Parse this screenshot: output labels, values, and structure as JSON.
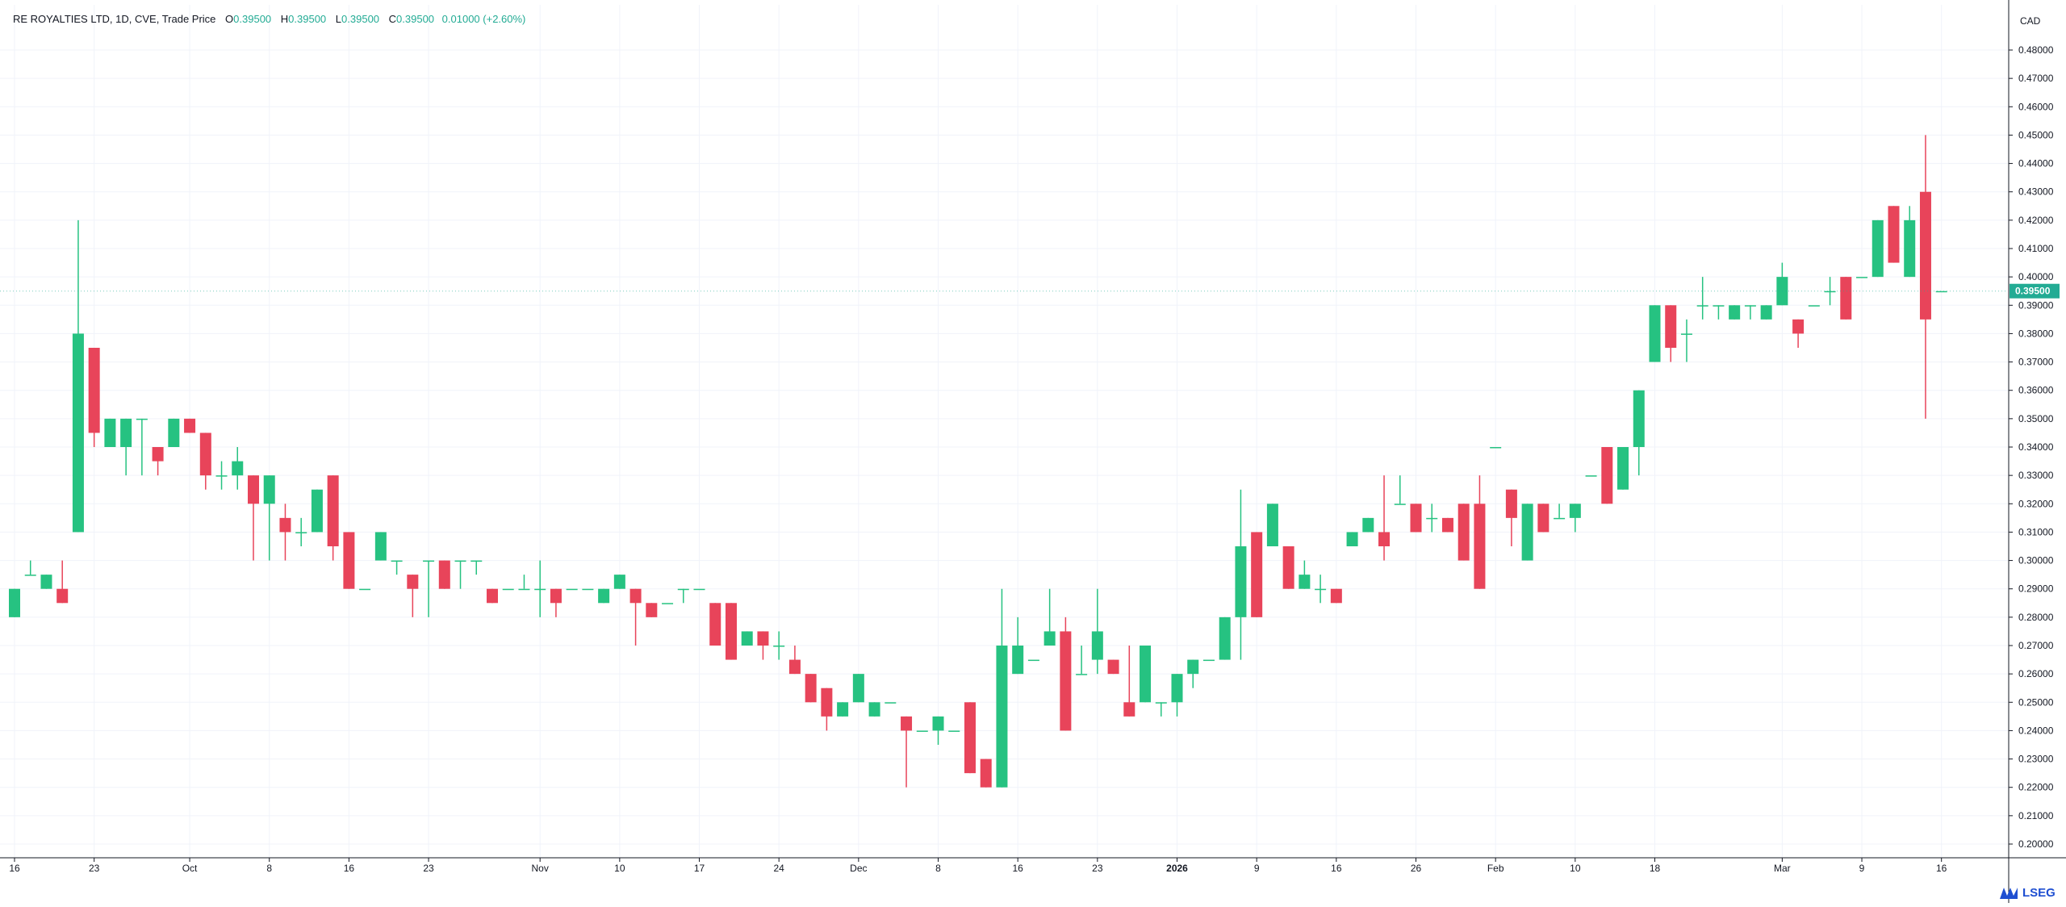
{
  "header": {
    "symbol_line": "RE ROYALTIES LTD, 1D, CVE, Trade Price",
    "o_label": "O",
    "o_value": "0.39500",
    "h_label": "H",
    "h_value": "0.39500",
    "l_label": "L",
    "l_value": "0.39500",
    "c_label": "C",
    "c_value": "0.39500",
    "change": "0.01000 (+2.60%)"
  },
  "currency": "CAD",
  "branding": {
    "logo_text": "LSEG"
  },
  "colors": {
    "up": "#26c281",
    "down": "#e8445a",
    "grid": "#f0f3fa",
    "axis": "#131722",
    "last_price_bg": "#22ab94"
  },
  "chart_data": {
    "type": "candlestick",
    "title": "RE ROYALTIES LTD, 1D, CVE, Trade Price",
    "ylabel": "CAD",
    "ylim": [
      0.195,
      0.49
    ],
    "y_ticks": [
      "0.20000",
      "0.21000",
      "0.22000",
      "0.23000",
      "0.24000",
      "0.25000",
      "0.26000",
      "0.27000",
      "0.28000",
      "0.29000",
      "0.30000",
      "0.31000",
      "0.32000",
      "0.33000",
      "0.34000",
      "0.35000",
      "0.36000",
      "0.37000",
      "0.38000",
      "0.39000",
      "0.40000",
      "0.41000",
      "0.42000",
      "0.43000",
      "0.44000",
      "0.45000",
      "0.46000",
      "0.47000",
      "0.48000"
    ],
    "x_ticks": [
      {
        "i": 0,
        "label": "16",
        "bold": false
      },
      {
        "i": 5,
        "label": "23",
        "bold": false
      },
      {
        "i": 11,
        "label": "Oct",
        "bold": false
      },
      {
        "i": 16,
        "label": "8",
        "bold": false
      },
      {
        "i": 21,
        "label": "16",
        "bold": false
      },
      {
        "i": 26,
        "label": "23",
        "bold": false
      },
      {
        "i": 33,
        "label": "Nov",
        "bold": false
      },
      {
        "i": 38,
        "label": "10",
        "bold": false
      },
      {
        "i": 43,
        "label": "17",
        "bold": false
      },
      {
        "i": 48,
        "label": "24",
        "bold": false
      },
      {
        "i": 53,
        "label": "Dec",
        "bold": false
      },
      {
        "i": 58,
        "label": "8",
        "bold": false
      },
      {
        "i": 63,
        "label": "16",
        "bold": false
      },
      {
        "i": 68,
        "label": "23",
        "bold": false
      },
      {
        "i": 73,
        "label": "2026",
        "bold": true
      },
      {
        "i": 78,
        "label": "9",
        "bold": false
      },
      {
        "i": 83,
        "label": "16",
        "bold": false
      },
      {
        "i": 88,
        "label": "26",
        "bold": false
      },
      {
        "i": 93,
        "label": "Feb",
        "bold": false
      },
      {
        "i": 98,
        "label": "10",
        "bold": false
      },
      {
        "i": 103,
        "label": "18",
        "bold": false
      },
      {
        "i": 111,
        "label": "Mar",
        "bold": false
      },
      {
        "i": 116,
        "label": "9",
        "bold": false
      },
      {
        "i": 121,
        "label": "16",
        "bold": false
      }
    ],
    "last_price": "0.39500",
    "candles": [
      {
        "o": 0.28,
        "h": 0.29,
        "l": 0.28,
        "c": 0.29
      },
      {
        "o": 0.295,
        "h": 0.3,
        "l": 0.295,
        "c": 0.295
      },
      {
        "o": 0.29,
        "h": 0.295,
        "l": 0.29,
        "c": 0.295
      },
      {
        "o": 0.29,
        "h": 0.3,
        "l": 0.285,
        "c": 0.285
      },
      {
        "o": 0.31,
        "h": 0.42,
        "l": 0.31,
        "c": 0.38
      },
      {
        "o": 0.375,
        "h": 0.375,
        "l": 0.34,
        "c": 0.345
      },
      {
        "o": 0.34,
        "h": 0.35,
        "l": 0.34,
        "c": 0.35
      },
      {
        "o": 0.34,
        "h": 0.35,
        "l": 0.33,
        "c": 0.35
      },
      {
        "o": 0.35,
        "h": 0.35,
        "l": 0.33,
        "c": 0.35
      },
      {
        "o": 0.34,
        "h": 0.34,
        "l": 0.33,
        "c": 0.335
      },
      {
        "o": 0.34,
        "h": 0.35,
        "l": 0.34,
        "c": 0.35
      },
      {
        "o": 0.35,
        "h": 0.35,
        "l": 0.345,
        "c": 0.345
      },
      {
        "o": 0.345,
        "h": 0.345,
        "l": 0.325,
        "c": 0.33
      },
      {
        "o": 0.33,
        "h": 0.335,
        "l": 0.325,
        "c": 0.33
      },
      {
        "o": 0.33,
        "h": 0.34,
        "l": 0.325,
        "c": 0.335
      },
      {
        "o": 0.33,
        "h": 0.33,
        "l": 0.3,
        "c": 0.32
      },
      {
        "o": 0.32,
        "h": 0.33,
        "l": 0.3,
        "c": 0.33
      },
      {
        "o": 0.315,
        "h": 0.32,
        "l": 0.3,
        "c": 0.31
      },
      {
        "o": 0.31,
        "h": 0.315,
        "l": 0.305,
        "c": 0.31
      },
      {
        "o": 0.31,
        "h": 0.325,
        "l": 0.31,
        "c": 0.325
      },
      {
        "o": 0.33,
        "h": 0.33,
        "l": 0.3,
        "c": 0.305
      },
      {
        "o": 0.31,
        "h": 0.31,
        "l": 0.29,
        "c": 0.29
      },
      {
        "o": 0.29,
        "h": 0.29,
        "l": 0.29,
        "c": 0.29
      },
      {
        "o": 0.3,
        "h": 0.31,
        "l": 0.3,
        "c": 0.31
      },
      {
        "o": 0.3,
        "h": 0.3,
        "l": 0.295,
        "c": 0.3
      },
      {
        "o": 0.295,
        "h": 0.295,
        "l": 0.28,
        "c": 0.29
      },
      {
        "o": 0.3,
        "h": 0.3,
        "l": 0.28,
        "c": 0.3
      },
      {
        "o": 0.3,
        "h": 0.3,
        "l": 0.29,
        "c": 0.29
      },
      {
        "o": 0.3,
        "h": 0.3,
        "l": 0.29,
        "c": 0.3
      },
      {
        "o": 0.3,
        "h": 0.3,
        "l": 0.295,
        "c": 0.3
      },
      {
        "o": 0.29,
        "h": 0.29,
        "l": 0.285,
        "c": 0.285
      },
      {
        "o": 0.29,
        "h": 0.29,
        "l": 0.29,
        "c": 0.29
      },
      {
        "o": 0.29,
        "h": 0.295,
        "l": 0.29,
        "c": 0.29
      },
      {
        "o": 0.29,
        "h": 0.3,
        "l": 0.28,
        "c": 0.29
      },
      {
        "o": 0.29,
        "h": 0.29,
        "l": 0.28,
        "c": 0.285
      },
      {
        "o": 0.29,
        "h": 0.29,
        "l": 0.29,
        "c": 0.29
      },
      {
        "o": 0.29,
        "h": 0.29,
        "l": 0.29,
        "c": 0.29
      },
      {
        "o": 0.285,
        "h": 0.29,
        "l": 0.285,
        "c": 0.29
      },
      {
        "o": 0.29,
        "h": 0.295,
        "l": 0.29,
        "c": 0.295
      },
      {
        "o": 0.29,
        "h": 0.29,
        "l": 0.27,
        "c": 0.285
      },
      {
        "o": 0.285,
        "h": 0.285,
        "l": 0.28,
        "c": 0.28
      },
      {
        "o": 0.285,
        "h": 0.285,
        "l": 0.285,
        "c": 0.285
      },
      {
        "o": 0.29,
        "h": 0.29,
        "l": 0.285,
        "c": 0.29
      },
      {
        "o": 0.29,
        "h": 0.29,
        "l": 0.29,
        "c": 0.29
      },
      {
        "o": 0.285,
        "h": 0.285,
        "l": 0.27,
        "c": 0.27
      },
      {
        "o": 0.285,
        "h": 0.285,
        "l": 0.265,
        "c": 0.265
      },
      {
        "o": 0.27,
        "h": 0.275,
        "l": 0.27,
        "c": 0.275
      },
      {
        "o": 0.275,
        "h": 0.275,
        "l": 0.265,
        "c": 0.27
      },
      {
        "o": 0.27,
        "h": 0.275,
        "l": 0.265,
        "c": 0.27
      },
      {
        "o": 0.265,
        "h": 0.27,
        "l": 0.26,
        "c": 0.26
      },
      {
        "o": 0.26,
        "h": 0.26,
        "l": 0.25,
        "c": 0.25
      },
      {
        "o": 0.255,
        "h": 0.255,
        "l": 0.24,
        "c": 0.245
      },
      {
        "o": 0.245,
        "h": 0.25,
        "l": 0.245,
        "c": 0.25
      },
      {
        "o": 0.25,
        "h": 0.26,
        "l": 0.25,
        "c": 0.26
      },
      {
        "o": 0.245,
        "h": 0.25,
        "l": 0.245,
        "c": 0.25
      },
      {
        "o": 0.25,
        "h": 0.25,
        "l": 0.25,
        "c": 0.25
      },
      {
        "o": 0.245,
        "h": 0.245,
        "l": 0.22,
        "c": 0.24
      },
      {
        "o": 0.24,
        "h": 0.24,
        "l": 0.24,
        "c": 0.24
      },
      {
        "o": 0.24,
        "h": 0.245,
        "l": 0.235,
        "c": 0.245
      },
      {
        "o": 0.24,
        "h": 0.24,
        "l": 0.24,
        "c": 0.24
      },
      {
        "o": 0.25,
        "h": 0.25,
        "l": 0.225,
        "c": 0.225
      },
      {
        "o": 0.23,
        "h": 0.23,
        "l": 0.22,
        "c": 0.22
      },
      {
        "o": 0.22,
        "h": 0.29,
        "l": 0.22,
        "c": 0.27
      },
      {
        "o": 0.26,
        "h": 0.28,
        "l": 0.26,
        "c": 0.27
      },
      {
        "o": 0.265,
        "h": 0.265,
        "l": 0.265,
        "c": 0.265
      },
      {
        "o": 0.27,
        "h": 0.29,
        "l": 0.27,
        "c": 0.275
      },
      {
        "o": 0.275,
        "h": 0.28,
        "l": 0.24,
        "c": 0.24
      },
      {
        "o": 0.26,
        "h": 0.27,
        "l": 0.26,
        "c": 0.26
      },
      {
        "o": 0.265,
        "h": 0.29,
        "l": 0.26,
        "c": 0.275
      },
      {
        "o": 0.265,
        "h": 0.265,
        "l": 0.26,
        "c": 0.26
      },
      {
        "o": 0.25,
        "h": 0.27,
        "l": 0.245,
        "c": 0.245
      },
      {
        "o": 0.25,
        "h": 0.27,
        "l": 0.25,
        "c": 0.27
      },
      {
        "o": 0.25,
        "h": 0.25,
        "l": 0.245,
        "c": 0.25
      },
      {
        "o": 0.25,
        "h": 0.26,
        "l": 0.245,
        "c": 0.26
      },
      {
        "o": 0.26,
        "h": 0.265,
        "l": 0.255,
        "c": 0.265
      },
      {
        "o": 0.265,
        "h": 0.265,
        "l": 0.265,
        "c": 0.265
      },
      {
        "o": 0.265,
        "h": 0.28,
        "l": 0.265,
        "c": 0.28
      },
      {
        "o": 0.28,
        "h": 0.325,
        "l": 0.265,
        "c": 0.305
      },
      {
        "o": 0.31,
        "h": 0.31,
        "l": 0.28,
        "c": 0.28
      },
      {
        "o": 0.305,
        "h": 0.32,
        "l": 0.305,
        "c": 0.32
      },
      {
        "o": 0.305,
        "h": 0.305,
        "l": 0.29,
        "c": 0.29
      },
      {
        "o": 0.29,
        "h": 0.3,
        "l": 0.29,
        "c": 0.295
      },
      {
        "o": 0.29,
        "h": 0.295,
        "l": 0.285,
        "c": 0.29
      },
      {
        "o": 0.29,
        "h": 0.29,
        "l": 0.285,
        "c": 0.285
      },
      {
        "o": 0.305,
        "h": 0.31,
        "l": 0.305,
        "c": 0.31
      },
      {
        "o": 0.31,
        "h": 0.315,
        "l": 0.31,
        "c": 0.315
      },
      {
        "o": 0.31,
        "h": 0.33,
        "l": 0.3,
        "c": 0.305
      },
      {
        "o": 0.32,
        "h": 0.33,
        "l": 0.32,
        "c": 0.32
      },
      {
        "o": 0.32,
        "h": 0.32,
        "l": 0.31,
        "c": 0.31
      },
      {
        "o": 0.315,
        "h": 0.32,
        "l": 0.31,
        "c": 0.315
      },
      {
        "o": 0.315,
        "h": 0.315,
        "l": 0.31,
        "c": 0.31
      },
      {
        "o": 0.32,
        "h": 0.32,
        "l": 0.3,
        "c": 0.3
      },
      {
        "o": 0.32,
        "h": 0.33,
        "l": 0.29,
        "c": 0.29
      },
      {
        "o": 0.34,
        "h": 0.34,
        "l": 0.34,
        "c": 0.34
      },
      {
        "o": 0.325,
        "h": 0.325,
        "l": 0.305,
        "c": 0.315
      },
      {
        "o": 0.3,
        "h": 0.32,
        "l": 0.3,
        "c": 0.32
      },
      {
        "o": 0.32,
        "h": 0.32,
        "l": 0.31,
        "c": 0.31
      },
      {
        "o": 0.315,
        "h": 0.32,
        "l": 0.315,
        "c": 0.315
      },
      {
        "o": 0.315,
        "h": 0.32,
        "l": 0.31,
        "c": 0.32
      },
      {
        "o": 0.33,
        "h": 0.33,
        "l": 0.33,
        "c": 0.33
      },
      {
        "o": 0.34,
        "h": 0.34,
        "l": 0.32,
        "c": 0.32
      },
      {
        "o": 0.325,
        "h": 0.34,
        "l": 0.325,
        "c": 0.34
      },
      {
        "o": 0.34,
        "h": 0.36,
        "l": 0.33,
        "c": 0.36
      },
      {
        "o": 0.37,
        "h": 0.39,
        "l": 0.37,
        "c": 0.39
      },
      {
        "o": 0.39,
        "h": 0.39,
        "l": 0.37,
        "c": 0.375
      },
      {
        "o": 0.38,
        "h": 0.385,
        "l": 0.37,
        "c": 0.38
      },
      {
        "o": 0.39,
        "h": 0.4,
        "l": 0.385,
        "c": 0.39
      },
      {
        "o": 0.39,
        "h": 0.39,
        "l": 0.385,
        "c": 0.39
      },
      {
        "o": 0.385,
        "h": 0.39,
        "l": 0.385,
        "c": 0.39
      },
      {
        "o": 0.39,
        "h": 0.39,
        "l": 0.385,
        "c": 0.39
      },
      {
        "o": 0.385,
        "h": 0.39,
        "l": 0.385,
        "c": 0.39
      },
      {
        "o": 0.39,
        "h": 0.405,
        "l": 0.39,
        "c": 0.4
      },
      {
        "o": 0.385,
        "h": 0.385,
        "l": 0.375,
        "c": 0.38
      },
      {
        "o": 0.39,
        "h": 0.39,
        "l": 0.39,
        "c": 0.39
      },
      {
        "o": 0.395,
        "h": 0.4,
        "l": 0.39,
        "c": 0.395
      },
      {
        "o": 0.4,
        "h": 0.4,
        "l": 0.385,
        "c": 0.385
      },
      {
        "o": 0.4,
        "h": 0.4,
        "l": 0.4,
        "c": 0.4
      },
      {
        "o": 0.4,
        "h": 0.42,
        "l": 0.4,
        "c": 0.42
      },
      {
        "o": 0.425,
        "h": 0.425,
        "l": 0.405,
        "c": 0.405
      },
      {
        "o": 0.4,
        "h": 0.425,
        "l": 0.4,
        "c": 0.42
      },
      {
        "o": 0.43,
        "h": 0.45,
        "l": 0.35,
        "c": 0.385
      },
      {
        "o": 0.395,
        "h": 0.395,
        "l": 0.395,
        "c": 0.395
      }
    ]
  }
}
